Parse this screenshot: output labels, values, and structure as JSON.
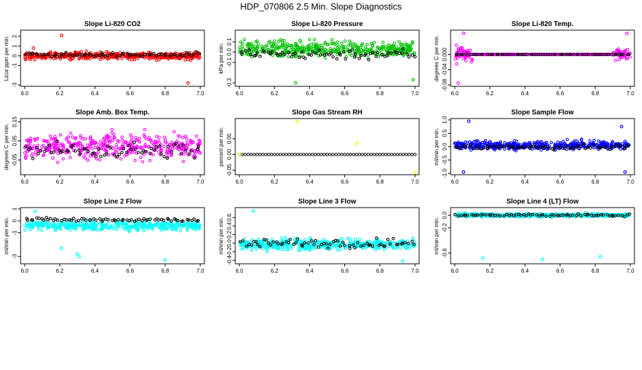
{
  "page_title": "HDP_070806  2.5 Min. Slope Diagnostics",
  "chart_data": [
    {
      "type": "scatter",
      "title": "Slope Li-820 CO2",
      "ylabel": "Licor ppm per min.",
      "color": "#ff0000",
      "xlim": [
        6.0,
        7.0
      ],
      "ylim": [
        -3,
        2.5
      ],
      "xticks": [
        "6.0",
        "6.2",
        "6.4",
        "6.6",
        "6.8",
        "7.0"
      ],
      "yticks": [
        {
          "v": 2,
          "label": "2"
        },
        {
          "v": 1,
          "label": "1"
        },
        {
          "v": 0,
          "label": "0"
        },
        {
          "v": -1,
          "label": "-1"
        },
        {
          "v": -3,
          "label": "-3"
        }
      ],
      "center": 0.0,
      "spread": 0.35,
      "black_center": 0.1,
      "black_spread": 0.2,
      "outliers": [
        {
          "x": 6.21,
          "y": 2.1,
          "black": false
        },
        {
          "x": 6.93,
          "y": -2.8,
          "black": false
        },
        {
          "x": 6.05,
          "y": 0.8,
          "black": false
        }
      ]
    },
    {
      "type": "scatter",
      "title": "Slope Li-820 Pressure",
      "ylabel": "kPa per min.",
      "color": "#00c000",
      "xlim": [
        6.0,
        7.0
      ],
      "ylim": [
        -0.32,
        0.2
      ],
      "xticks": [
        "6.0",
        "6.2",
        "6.4",
        "6.6",
        "6.8",
        "7.0"
      ],
      "yticks": [
        {
          "v": 0.1,
          "label": "0.1"
        },
        {
          "v": 0.0,
          "label": "0.0"
        },
        {
          "v": -0.1,
          "label": "-0.1"
        },
        {
          "v": -0.3,
          "label": "-0.3"
        }
      ],
      "center": 0.03,
      "spread": 0.07,
      "black_center": -0.02,
      "black_spread": 0.05,
      "outliers": [
        {
          "x": 6.32,
          "y": -0.3,
          "black": false
        },
        {
          "x": 6.99,
          "y": -0.27,
          "black": false
        }
      ]
    },
    {
      "type": "scatter",
      "title": "Slope Li-820 Temp.",
      "ylabel": "degrees C per min.",
      "color": "#ff00ff",
      "xlim": [
        6.0,
        7.0
      ],
      "ylim": [
        -0.08,
        0.06
      ],
      "xticks": [
        "6.0",
        "6.2",
        "6.4",
        "6.6",
        "6.8",
        "7.0"
      ],
      "yticks": [
        {
          "v": 0.0,
          "label": "0.000"
        },
        {
          "v": -0.04,
          "label": "-0.04"
        },
        {
          "v": -0.08,
          "label": "-0.08"
        }
      ],
      "center": 0.0,
      "spread": 0.0,
      "black_center": 0.0,
      "black_spread": 0.0,
      "noisy_ranges": [
        [
          6.0,
          6.1,
          0.02
        ],
        [
          6.9,
          7.0,
          0.015
        ]
      ],
      "outliers": [
        {
          "x": 6.02,
          "y": -0.075,
          "black": false
        },
        {
          "x": 6.98,
          "y": 0.055,
          "black": false
        },
        {
          "x": 6.05,
          "y": 0.055,
          "black": false
        }
      ]
    },
    {
      "type": "scatter",
      "title": "Slope Amb. Box Temp.",
      "ylabel": "degrees C per min.",
      "color": "#ff00ff",
      "xlim": [
        6.0,
        7.0
      ],
      "ylim": [
        -0.12,
        0.16
      ],
      "xticks": [
        "6.0",
        "6.2",
        "6.4",
        "6.6",
        "6.8",
        "7.0"
      ],
      "yticks": [
        {
          "v": 0.15,
          "label": "0.15"
        },
        {
          "v": 0.05,
          "label": "0.05"
        },
        {
          "v": -0.05,
          "label": "-0.05"
        }
      ],
      "center": 0.02,
      "spread": 0.06,
      "black_center": 0.0,
      "black_spread": 0.04,
      "outliers": []
    },
    {
      "type": "scatter",
      "title": "Slope Gas Stream RH",
      "ylabel": "percent per min.",
      "color": "#ffff00",
      "xlim": [
        6.0,
        7.0
      ],
      "ylim": [
        -0.06,
        0.11
      ],
      "xticks": [
        "6.0",
        "6.2",
        "6.4",
        "6.6",
        "6.8",
        "7.0"
      ],
      "yticks": [
        {
          "v": 0.05,
          "label": "0.05"
        },
        {
          "v": 0.0,
          "label": "0.00"
        },
        {
          "v": -0.05,
          "label": "-0.05"
        }
      ],
      "flat": true,
      "center": 0.0,
      "spread": 0.0,
      "black_center": 0.0,
      "black_spread": 0.0,
      "outliers": [
        {
          "x": 6.33,
          "y": 0.105,
          "black": false
        },
        {
          "x": 6.67,
          "y": 0.035,
          "black": false
        },
        {
          "x": 7.0,
          "y": -0.058,
          "black": false
        },
        {
          "x": 6.0,
          "y": 0.0,
          "black": false
        }
      ]
    },
    {
      "type": "scatter",
      "title": "Slope Sample Flow",
      "ylabel": "ml/min per min.",
      "color": "#0000ff",
      "xlim": [
        6.0,
        7.0
      ],
      "ylim": [
        -1.0,
        1.0
      ],
      "xticks": [
        "6.0",
        "6.2",
        "6.4",
        "6.6",
        "6.8",
        "7.0"
      ],
      "yticks": [
        {
          "v": 1.0,
          "label": "1.0"
        },
        {
          "v": 0.5,
          "label": "0.5"
        },
        {
          "v": 0.0,
          "label": "0.0"
        },
        {
          "v": -0.5,
          "label": "-0.5"
        },
        {
          "v": -1.0,
          "label": "-1.0"
        }
      ],
      "center": 0.05,
      "spread": 0.15,
      "black_center": -0.02,
      "black_spread": 0.1,
      "outliers": [
        {
          "x": 6.08,
          "y": 0.95,
          "black": false
        },
        {
          "x": 6.05,
          "y": -0.95,
          "black": false
        },
        {
          "x": 6.97,
          "y": -0.95,
          "black": false
        },
        {
          "x": 6.95,
          "y": 0.75,
          "black": false
        }
      ]
    },
    {
      "type": "scatter",
      "title": "Slope Line 2 Flow",
      "ylabel": "ml/min per min.",
      "color": "#00ffff",
      "xlim": [
        6.0,
        7.0
      ],
      "ylim": [
        -3.5,
        1.0
      ],
      "xticks": [
        "6.0",
        "6.2",
        "6.4",
        "6.6",
        "6.8",
        "7.0"
      ],
      "yticks": [
        {
          "v": 1,
          "label": "1"
        },
        {
          "v": 0,
          "label": "0"
        },
        {
          "v": -1,
          "label": "-1"
        },
        {
          "v": -3,
          "label": "-3"
        }
      ],
      "center": -0.4,
      "spread": 0.35,
      "black_center": 0.1,
      "black_spread": 0.15,
      "outliers": [
        {
          "x": 6.3,
          "y": -2.8,
          "black": false
        },
        {
          "x": 6.31,
          "y": -3.0,
          "black": false
        },
        {
          "x": 6.8,
          "y": -3.3,
          "black": false
        },
        {
          "x": 6.21,
          "y": -2.3,
          "black": false
        },
        {
          "x": 6.06,
          "y": 0.8,
          "black": false
        }
      ]
    },
    {
      "type": "scatter",
      "title": "Slope Line 3 Flow",
      "ylabel": "ml/min per min.",
      "color": "#00ffff",
      "xlim": [
        6.0,
        7.0
      ],
      "ylim": [
        -0.45,
        0.8
      ],
      "xticks": [
        "6.0",
        "6.2",
        "6.4",
        "6.6",
        "6.8",
        "7.0"
      ],
      "yticks": [
        {
          "v": 0.6,
          "label": "0.6"
        },
        {
          "v": 0.4,
          "label": "0.4"
        },
        {
          "v": 0.2,
          "label": "0.2"
        },
        {
          "v": 0.0,
          "label": "0.0"
        },
        {
          "v": -0.2,
          "label": "-0.2"
        },
        {
          "v": -0.4,
          "label": "-0.4"
        }
      ],
      "center": -0.03,
      "spread": 0.12,
      "black_center": 0.0,
      "black_spread": 0.1,
      "outliers": [
        {
          "x": 6.08,
          "y": 0.75,
          "black": false
        },
        {
          "x": 6.93,
          "y": -0.42,
          "black": false
        }
      ]
    },
    {
      "type": "scatter",
      "title": "Slope Line 4 (LT) Flow",
      "ylabel": "ml/min per min.",
      "color": "#00ffff",
      "xlim": [
        6.0,
        7.0
      ],
      "ylim": [
        -0.75,
        0.1
      ],
      "xticks": [
        "6.0",
        "6.2",
        "6.4",
        "6.6",
        "6.8",
        "7.0"
      ],
      "yticks": [
        {
          "v": 0.0,
          "label": "0.0"
        },
        {
          "v": -0.2,
          "label": "-0.2"
        },
        {
          "v": -0.6,
          "label": "-0.6"
        }
      ],
      "center": 0.0,
      "spread": 0.025,
      "black_center": 0.0,
      "black_spread": 0.02,
      "outliers": [
        {
          "x": 6.16,
          "y": -0.68,
          "black": false
        },
        {
          "x": 6.5,
          "y": -0.7,
          "black": false
        },
        {
          "x": 6.83,
          "y": -0.66,
          "black": false
        }
      ]
    }
  ]
}
